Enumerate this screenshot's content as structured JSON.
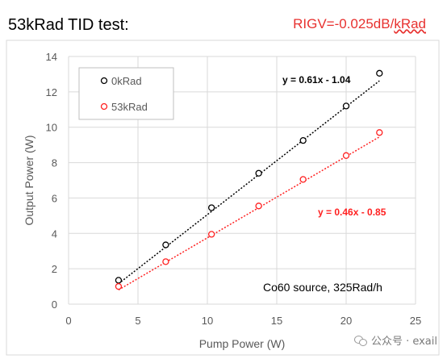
{
  "header": {
    "title": "53kRad TID test:",
    "rigv_prefix": "RIGV=-0.025dB/",
    "rigv_unit": "kRad"
  },
  "watermark": {
    "text": "公众号 · exail"
  },
  "chart_data": {
    "type": "scatter",
    "xlabel": "Pump Power (W)",
    "ylabel": "Output Power (W)",
    "xlim": [
      0,
      25
    ],
    "ylim": [
      0,
      14
    ],
    "xticks": [
      0,
      5,
      10,
      15,
      20,
      25
    ],
    "yticks": [
      0,
      2,
      4,
      6,
      8,
      10,
      12,
      14
    ],
    "grid": true,
    "legend_position": "top-left",
    "series": [
      {
        "name": "0kRad",
        "color": "#000000",
        "marker": "open-circle",
        "x": [
          3.6,
          7.0,
          10.3,
          13.7,
          16.9,
          20.0,
          22.4
        ],
        "y": [
          1.35,
          3.35,
          5.45,
          7.4,
          9.25,
          11.2,
          13.05
        ],
        "trendline": {
          "slope": 0.61,
          "intercept": -1.04,
          "label": "y = 0.61x - 1.04",
          "color": "#000000"
        }
      },
      {
        "name": "53kRad",
        "color": "#ff2020",
        "marker": "open-circle",
        "x": [
          3.6,
          7.0,
          10.3,
          13.7,
          16.9,
          20.0,
          22.4
        ],
        "y": [
          1.0,
          2.4,
          3.95,
          5.55,
          7.05,
          8.4,
          9.7
        ],
        "trendline": {
          "slope": 0.46,
          "intercept": -0.85,
          "label": "y = 0.46x - 0.85",
          "color": "#ff2020"
        }
      }
    ],
    "annotation": "Co60 source, 325Rad/h"
  }
}
